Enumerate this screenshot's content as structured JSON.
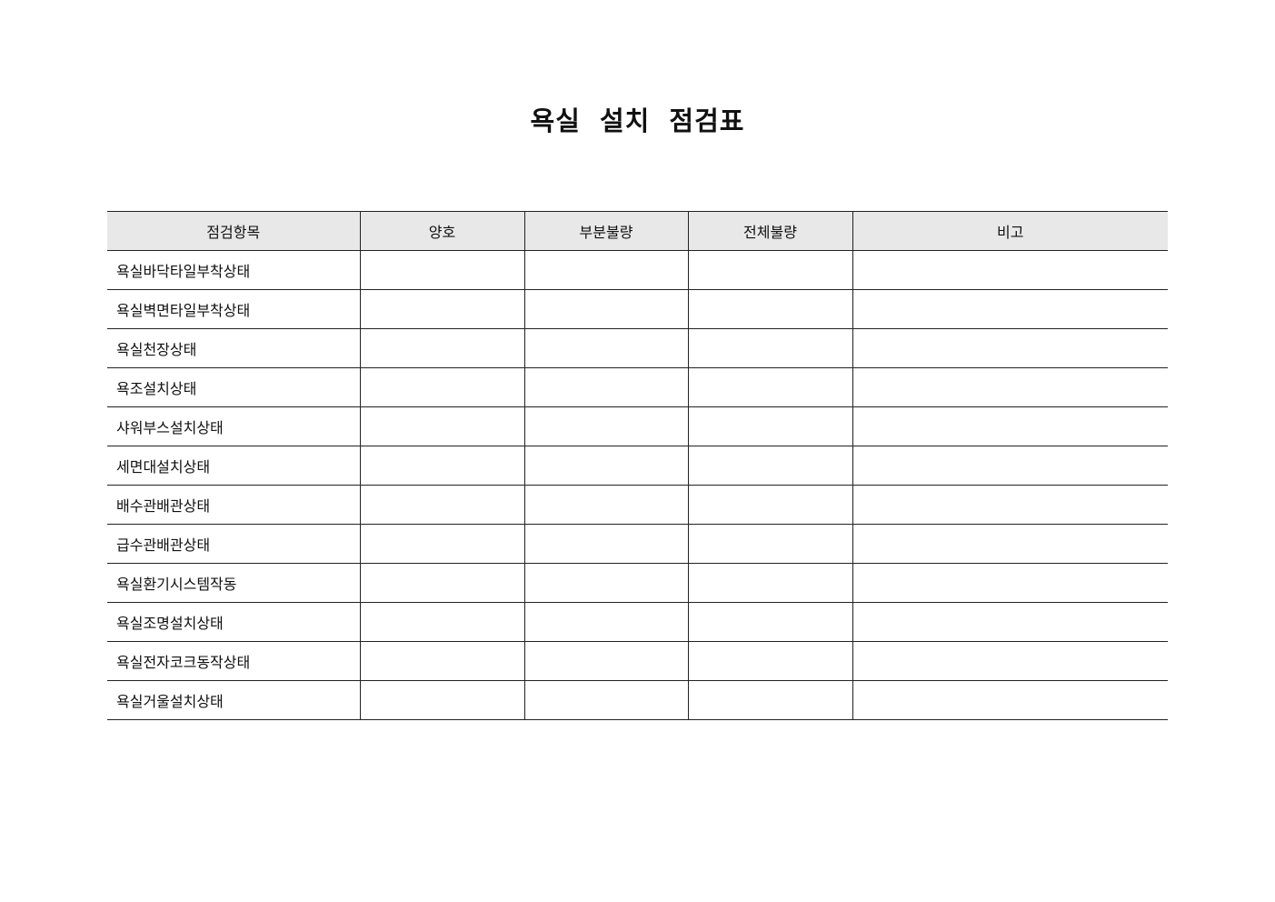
{
  "title": "욕실 설치 점검표",
  "columns": [
    "점검항목",
    "양호",
    "부분불량",
    "전체불량",
    "비고"
  ],
  "rows": [
    "욕실바닥타일부착상태",
    "욕실벽면타일부착상태",
    "욕실천장상태",
    "욕조설치상태",
    "샤워부스설치상태",
    "세면대설치상태",
    "배수관배관상태",
    "급수관배관상태",
    "욕실환기시스템작동",
    "욕실조명설치상태",
    "욕실전자코크동작상태",
    "욕실거울설치상태"
  ]
}
